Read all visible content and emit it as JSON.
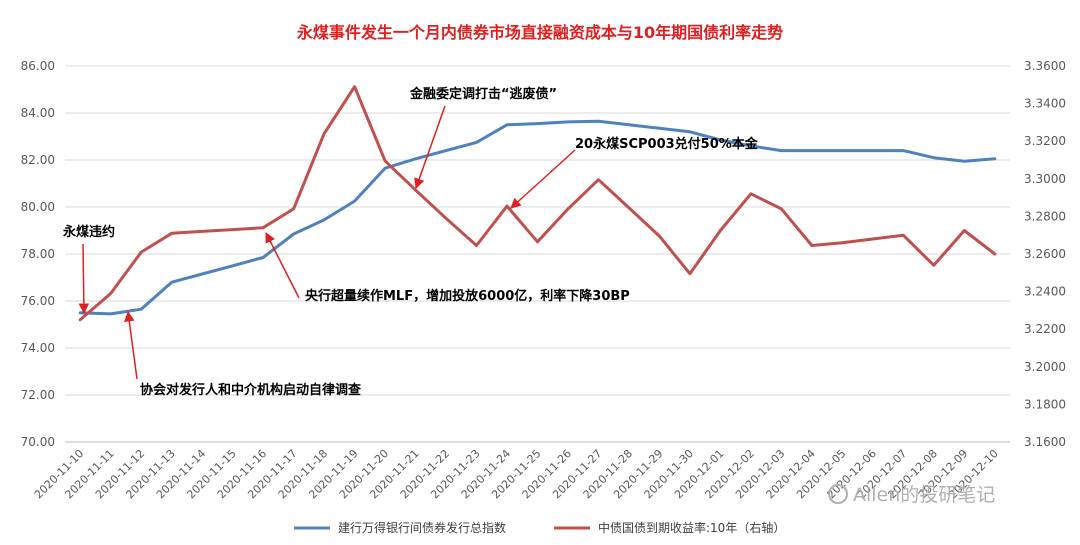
{
  "chart_data": {
    "type": "line",
    "title": "永煤事件发生一个月内债券市场直接融资成本与10年期国债利率走势",
    "x": [
      "2020-11-10",
      "2020-11-11",
      "2020-11-12",
      "2020-11-13",
      "2020-11-14",
      "2020-11-15",
      "2020-11-16",
      "2020-11-17",
      "2020-11-18",
      "2020-11-19",
      "2020-11-20",
      "2020-11-21",
      "2020-11-22",
      "2020-11-23",
      "2020-11-24",
      "2020-11-25",
      "2020-11-26",
      "2020-11-27",
      "2020-11-28",
      "2020-11-29",
      "2020-11-30",
      "2020-12-01",
      "2020-12-02",
      "2020-12-03",
      "2020-12-04",
      "2020-12-05",
      "2020-12-06",
      "2020-12-07",
      "2020-12-08",
      "2020-12-09",
      "2020-12-10"
    ],
    "left_axis": {
      "ticks": [
        "70.00",
        "72.00",
        "74.00",
        "76.00",
        "78.00",
        "80.00",
        "82.00",
        "84.00",
        "86.00"
      ],
      "ylim": [
        70,
        86
      ]
    },
    "right_axis": {
      "ticks": [
        "3.1600",
        "3.1800",
        "3.2000",
        "3.2200",
        "3.2400",
        "3.2600",
        "3.2800",
        "3.3000",
        "3.3200",
        "3.3400",
        "3.3600"
      ],
      "ylim": [
        3.16,
        3.36
      ]
    },
    "series": [
      {
        "name": "建行万得银行间债券发行总指数",
        "axis": "left",
        "color": "#4f81bd",
        "values": [
          75.5,
          75.45,
          75.65,
          76.8,
          77.15,
          77.5,
          77.85,
          78.85,
          79.45,
          80.25,
          81.65,
          82.05,
          82.4,
          82.75,
          83.5,
          83.55,
          83.62,
          83.65,
          83.5,
          83.35,
          83.2,
          82.85,
          82.6,
          82.4,
          82.4,
          82.4,
          82.4,
          82.4,
          82.1,
          81.95,
          82.05
        ]
      },
      {
        "name": "中债国债到期收益率:10年（右轴）",
        "axis": "right",
        "color": "#c0504d",
        "values": [
          3.225,
          3.239,
          3.261,
          3.271,
          3.272,
          3.273,
          3.274,
          3.284,
          3.324,
          3.349,
          3.3095,
          3.294,
          3.279,
          3.2645,
          3.2855,
          3.2665,
          3.284,
          3.2995,
          3.2845,
          3.2695,
          3.2495,
          3.2725,
          3.292,
          3.284,
          3.2645,
          3.266,
          3.268,
          3.27,
          3.254,
          3.2725,
          3.26
        ]
      }
    ],
    "annotations": [
      {
        "text": "永煤违约",
        "x": "2020-11-10"
      },
      {
        "text": "协会对发行人和中介机构启动自律调查",
        "x": "2020-11-12"
      },
      {
        "text": "央行超量续作MLF，增加投放6000亿，利率下降30BP",
        "x": "2020-11-16"
      },
      {
        "text": "金融委定调打击“逃废债”",
        "x": "2020-11-21"
      },
      {
        "text": "20永煤SCP003兑付50%本金",
        "x": "2020-11-24"
      }
    ],
    "legend_position": "bottom",
    "grid": true
  },
  "watermark": "Allen的投研笔记"
}
